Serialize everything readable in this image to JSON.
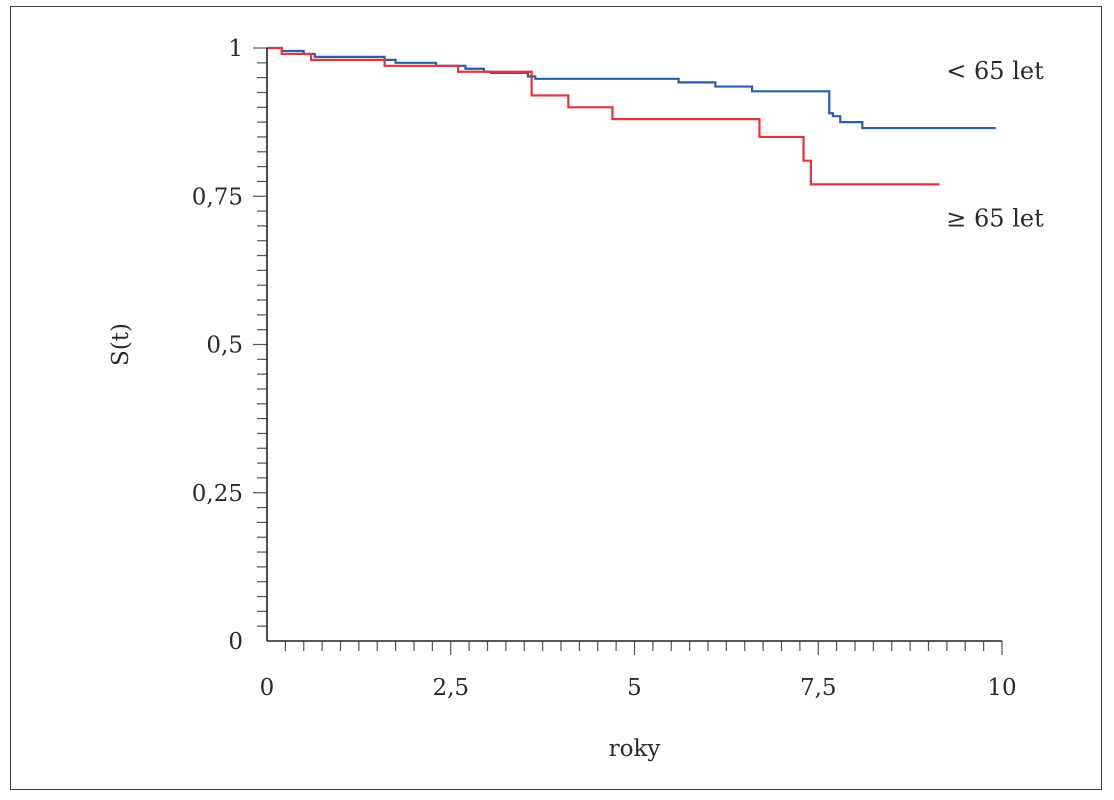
{
  "chart_data": {
    "type": "line",
    "title": "",
    "xlabel": "roky",
    "ylabel": "S(t)",
    "xlim": [
      0,
      10
    ],
    "ylim": [
      0,
      1
    ],
    "x_ticks": [
      0,
      2.5,
      5,
      7.5,
      10
    ],
    "x_tick_labels": [
      "0",
      "2,5",
      "5",
      "7,5",
      "10"
    ],
    "y_ticks": [
      0,
      0.25,
      0.5,
      0.75,
      1
    ],
    "y_tick_labels": [
      "0",
      "0,25",
      "0,5",
      "0,75",
      "1"
    ],
    "grid": false,
    "step": true,
    "series": [
      {
        "name": "< 65 let",
        "color": "#2a5fa8",
        "x": [
          0,
          0.2,
          0.5,
          0.65,
          1.6,
          1.75,
          2.3,
          2.7,
          2.95,
          3.05,
          3.55,
          3.65,
          5.6,
          6.1,
          6.6,
          7.65,
          7.7,
          7.8,
          8.1,
          9.9
        ],
        "y": [
          1,
          0.995,
          0.99,
          0.985,
          0.98,
          0.975,
          0.97,
          0.965,
          0.96,
          0.958,
          0.952,
          0.948,
          0.942,
          0.935,
          0.927,
          0.89,
          0.885,
          0.875,
          0.865,
          0.863
        ]
      },
      {
        "name": "≥ 65 let",
        "color": "#e8323b",
        "x": [
          0,
          0.2,
          0.6,
          1.6,
          2.6,
          3.6,
          4.1,
          4.7,
          6.7,
          7.3,
          7.4,
          9.15
        ],
        "y": [
          1,
          0.99,
          0.98,
          0.97,
          0.96,
          0.92,
          0.9,
          0.88,
          0.85,
          0.81,
          0.77,
          0.77
        ]
      }
    ]
  }
}
